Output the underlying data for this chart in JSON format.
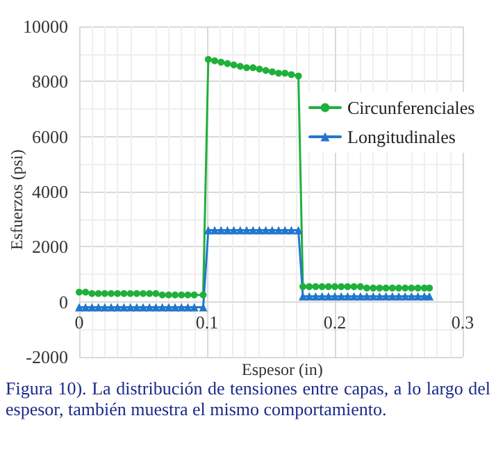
{
  "chart_data": {
    "type": "line",
    "xlabel": "Espesor (in)",
    "ylabel": "Esfuerzos (psi)",
    "xlim": [
      0,
      0.3
    ],
    "xticks": [
      0,
      0.1,
      0.2,
      0.3
    ],
    "ylim": [
      -2000,
      10000
    ],
    "yticks": [
      -2000,
      0,
      2000,
      4000,
      6000,
      8000,
      10000
    ],
    "grid": true,
    "legend": "right",
    "line_style": "solid",
    "annotations": [
      "Figura 10). La distribución de tensiones entre capas, a lo largo del espesor, también muestra el mismo comportamiento."
    ],
    "series": [
      {
        "name": "Circunferenciales",
        "color": "#1fb03a",
        "marker": "circle",
        "x": [
          0,
          0.005,
          0.01,
          0.015,
          0.02,
          0.025,
          0.03,
          0.035,
          0.04,
          0.045,
          0.05,
          0.055,
          0.06,
          0.065,
          0.07,
          0.075,
          0.08,
          0.085,
          0.09,
          0.097,
          0.101,
          0.106,
          0.111,
          0.116,
          0.121,
          0.126,
          0.131,
          0.136,
          0.141,
          0.146,
          0.151,
          0.156,
          0.161,
          0.166,
          0.1715,
          0.175,
          0.18,
          0.185,
          0.19,
          0.195,
          0.2,
          0.205,
          0.21,
          0.215,
          0.22,
          0.225,
          0.23,
          0.235,
          0.24,
          0.245,
          0.25,
          0.255,
          0.26,
          0.265,
          0.27,
          0.274
        ],
        "values": [
          350,
          350,
          300,
          300,
          300,
          300,
          300,
          300,
          300,
          300,
          300,
          300,
          300,
          250,
          250,
          250,
          250,
          250,
          250,
          250,
          8800,
          8750,
          8700,
          8650,
          8600,
          8550,
          8500,
          8500,
          8450,
          8400,
          8350,
          8300,
          8300,
          8250,
          8200,
          550,
          550,
          550,
          550,
          550,
          550,
          550,
          550,
          550,
          550,
          500,
          500,
          500,
          500,
          500,
          500,
          500,
          500,
          500,
          500,
          500
        ]
      },
      {
        "name": "Longitudinales",
        "color": "#2277cc",
        "marker": "triangle",
        "x": [
          0,
          0.005,
          0.01,
          0.015,
          0.02,
          0.025,
          0.03,
          0.035,
          0.04,
          0.045,
          0.05,
          0.055,
          0.06,
          0.065,
          0.07,
          0.075,
          0.08,
          0.085,
          0.09,
          0.097,
          0.101,
          0.106,
          0.111,
          0.116,
          0.121,
          0.126,
          0.131,
          0.136,
          0.141,
          0.146,
          0.151,
          0.156,
          0.161,
          0.166,
          0.1715,
          0.175,
          0.18,
          0.185,
          0.19,
          0.195,
          0.2,
          0.205,
          0.21,
          0.215,
          0.22,
          0.225,
          0.23,
          0.235,
          0.24,
          0.245,
          0.25,
          0.255,
          0.26,
          0.265,
          0.27,
          0.274
        ],
        "values": [
          -200,
          -200,
          -200,
          -200,
          -200,
          -200,
          -200,
          -200,
          -200,
          -200,
          -200,
          -200,
          -200,
          -200,
          -200,
          -200,
          -200,
          -200,
          -200,
          -200,
          2600,
          2600,
          2600,
          2600,
          2600,
          2600,
          2600,
          2600,
          2600,
          2600,
          2600,
          2600,
          2600,
          2600,
          2600,
          200,
          200,
          200,
          200,
          200,
          200,
          200,
          200,
          200,
          200,
          200,
          200,
          200,
          200,
          200,
          200,
          200,
          200,
          200,
          200,
          200
        ]
      }
    ]
  }
}
